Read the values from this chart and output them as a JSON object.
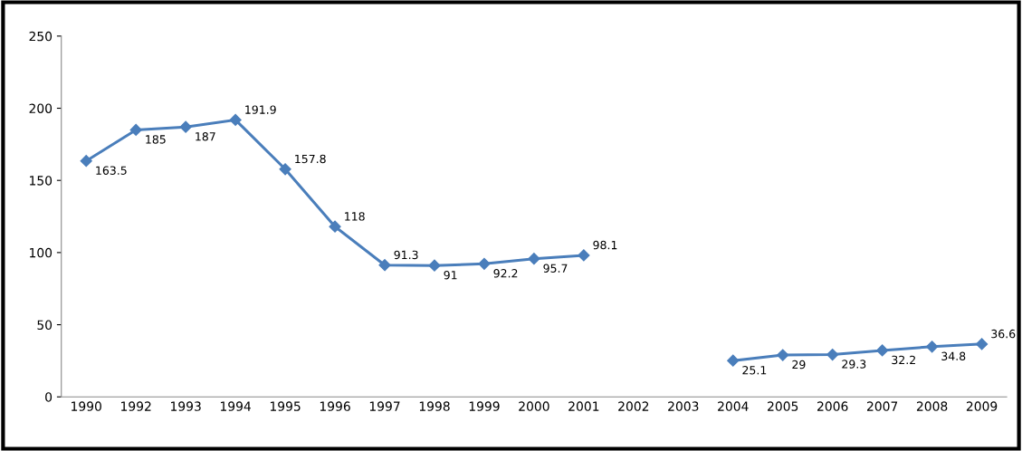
{
  "chart_data": {
    "type": "line",
    "categories": [
      "1990",
      "1992",
      "1993",
      "1994",
      "1995",
      "1996",
      "1997",
      "1998",
      "1999",
      "2000",
      "2001",
      "2002",
      "2003",
      "2004",
      "2005",
      "2006",
      "2007",
      "2008",
      "2009"
    ],
    "series": [
      {
        "color": "#4a7ebb",
        "values": [
          163.5,
          185,
          187,
          191.9,
          157.8,
          118,
          91.3,
          91,
          92.2,
          95.7,
          98.1,
          null,
          null,
          25.1,
          29,
          29.3,
          32.2,
          34.8,
          36.6
        ]
      }
    ],
    "ylim": [
      0,
      250
    ],
    "yticks": [
      0,
      50,
      100,
      150,
      200,
      250
    ],
    "data_labels": true,
    "marker": "diamond",
    "line_style": "solid",
    "grid": false,
    "legend": false
  }
}
